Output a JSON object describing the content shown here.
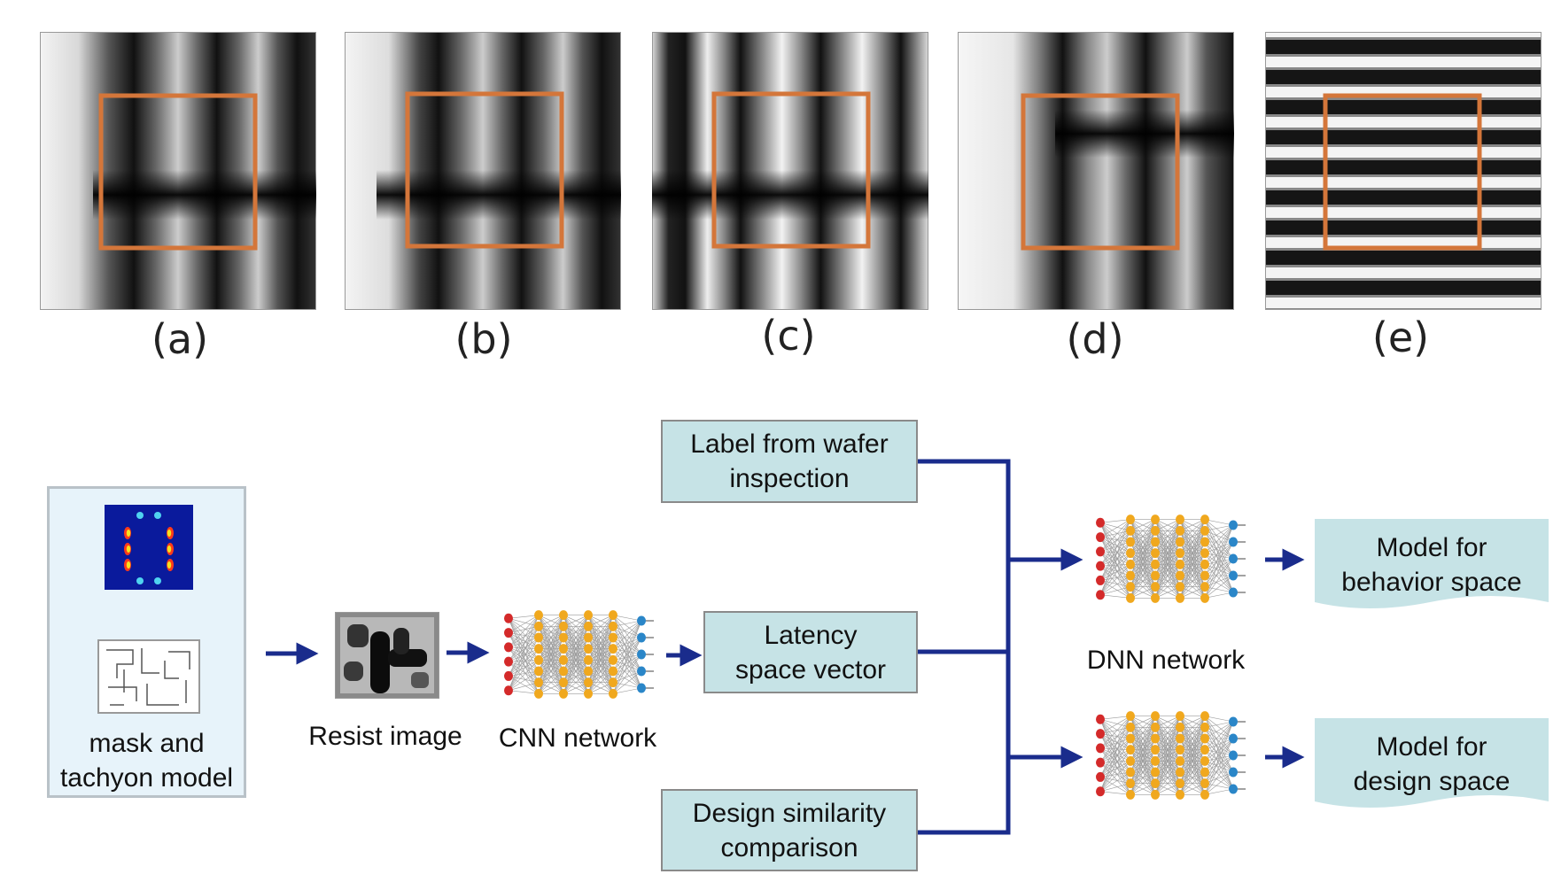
{
  "panels": [
    {
      "label": "(a)"
    },
    {
      "label": "(b)"
    },
    {
      "label": "(c)"
    },
    {
      "label": "(d)"
    },
    {
      "label": "(e)"
    }
  ],
  "flow": {
    "input_caption": "mask and\ntachyon model",
    "resist_caption": "Resist image",
    "cnn_caption": "CNN network",
    "dnn_caption": "DNN network",
    "label_box": "Label from wafer\ninspection",
    "latency_box": "Latency\nspace vector",
    "design_box": "Design similarity\ncomparison",
    "behavior_model": "Model for\nbehavior space",
    "design_model": "Model for\ndesign space"
  },
  "colors": {
    "arrow": "#1a2c8c",
    "box_fill": "#c6e3e6",
    "roi_frame": "#d4763a",
    "input_node": "#d42a2a",
    "hidden_node": "#f0a81e",
    "output_node": "#2a86c8"
  }
}
